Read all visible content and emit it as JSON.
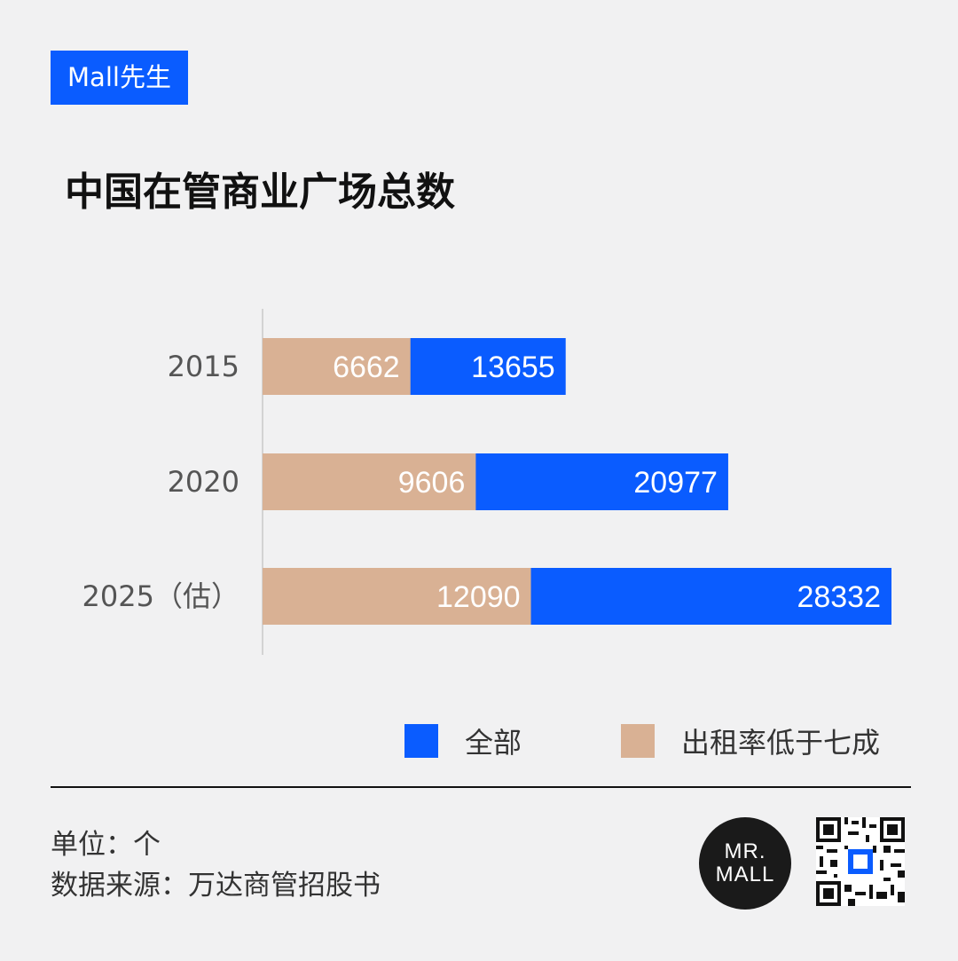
{
  "brand_tag": "Mall先生",
  "title": "中国在管商业广场总数",
  "chart_data": {
    "type": "bar",
    "orientation": "horizontal",
    "stacked": false,
    "categories": [
      "2015",
      "2020",
      "2025（估）"
    ],
    "series": [
      {
        "name": "全部",
        "values": [
          13655,
          20977,
          28332
        ],
        "color": "#0a5cff"
      },
      {
        "name": "出租率低于七成",
        "values": [
          6662,
          9606,
          12090
        ],
        "color": "#d9b194"
      }
    ],
    "xlim": [
      0,
      28332
    ],
    "grid": false,
    "legend_position": "bottom-right"
  },
  "legend": {
    "all": "全部",
    "low_occupancy": "出租率低于七成"
  },
  "footer": {
    "unit": "单位：个",
    "source": "数据来源：万达商管招股书"
  },
  "logo": {
    "line1": "MR.",
    "line2": "MALL"
  },
  "colors": {
    "accent": "#0a5cff",
    "secondary": "#d9b194",
    "background": "#f1f1f2"
  }
}
